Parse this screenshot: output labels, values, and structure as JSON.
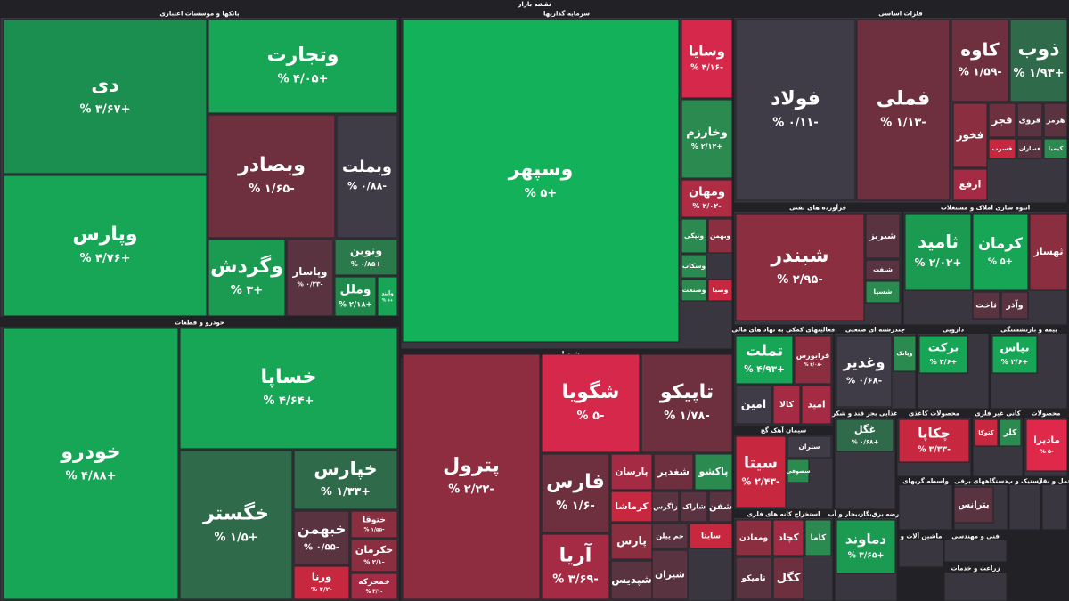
{
  "title": "نقشه بازار",
  "sectors": [
    {
      "name": "بانکها و موسسات اعتباری",
      "tiles": [
        {
          "name": "دی",
          "change": "+۳/۶۷ %",
          "color": "#1b8f4f"
        },
        {
          "name": "وپارس",
          "change": "+۴/۷۶ %",
          "color": "#17a556"
        },
        {
          "name": "وتجارت",
          "change": "+۴/۰۵ %",
          "color": "#17a556"
        },
        {
          "name": "وبصادر",
          "change": "-۱/۶۵ %",
          "color": "#6e2f3e"
        },
        {
          "name": "وبملت",
          "change": "-۰/۸۸ %",
          "color": "#3f3b47"
        },
        {
          "name": "وگردش",
          "change": "+۳ %",
          "color": "#1b9a52"
        },
        {
          "name": "وپاسار",
          "change": "-۰/۲۳ %",
          "color": "#5a3340"
        },
        {
          "name": "ونوین",
          "change": "+۰/۸۵ %",
          "color": "#2a7a4b"
        },
        {
          "name": "وملل",
          "change": "+۲/۱۸ %",
          "color": "#1f8a4c"
        },
        {
          "name": "وآیند",
          "change": "+۵ %",
          "color": "#17a556"
        }
      ]
    },
    {
      "name": "خودرو و قطعات",
      "tiles": [
        {
          "name": "خودرو",
          "change": "+۴/۸۸ %",
          "color": "#17a556"
        },
        {
          "name": "خساپا",
          "change": "+۴/۶۴ %",
          "color": "#17a556"
        },
        {
          "name": "خگستر",
          "change": "+۱/۵ %",
          "color": "#2f6a4a"
        },
        {
          "name": "خپارس",
          "change": "+۱/۳۳ %",
          "color": "#2f6a4a"
        },
        {
          "name": "خبهمن",
          "change": "-۰/۵۵ %",
          "color": "#5a3340"
        },
        {
          "name": "ختوقا",
          "change": "-۱/۵۵ %",
          "color": "#8a2e40"
        },
        {
          "name": "خکرمان",
          "change": "-۲/۱ %",
          "color": "#8a2e40"
        },
        {
          "name": "ورنا",
          "change": "-۴/۲ %",
          "color": "#c8283f"
        },
        {
          "name": "خمحرکه",
          "change": "-۳/۱ %",
          "color": "#a52b44"
        }
      ]
    },
    {
      "name": "سرمایه گذاریها",
      "tiles": [
        {
          "name": "وسپهر",
          "change": "+۵ %",
          "color": "#12b15a"
        },
        {
          "name": "وسایا",
          "change": "-۴/۱۶ %",
          "color": "#d6284a"
        },
        {
          "name": "وخارزم",
          "change": "+۲/۱۲ %",
          "color": "#2a8a50"
        },
        {
          "name": "ومهان",
          "change": "-۲/۰۲ %",
          "color": "#b02b44"
        },
        {
          "name": "ونیکی",
          "color": "#2a8a50"
        },
        {
          "name": "وبهمن",
          "color": "#8a2e40"
        },
        {
          "name": "وسکاب",
          "color": "#2a8a50"
        },
        {
          "name": "وصنعت",
          "color": "#2a8a50"
        },
        {
          "name": "وصبا",
          "color": "#c8283f"
        }
      ]
    },
    {
      "name": "فلزات اساسی",
      "tiles": [
        {
          "name": "فولاد",
          "change": "-۰/۱۱ %",
          "color": "#3f3b47"
        },
        {
          "name": "فملی",
          "change": "-۱/۱۳ %",
          "color": "#6e2f3e"
        },
        {
          "name": "کاوه",
          "change": "-۱/۵۹ %",
          "color": "#6e2f3e"
        },
        {
          "name": "ذوب",
          "change": "+۱/۹۳ %",
          "color": "#2f6a4a"
        },
        {
          "name": "فجر",
          "color": "#6e2f3e"
        },
        {
          "name": "فروی",
          "color": "#5a3340"
        },
        {
          "name": "هرمز",
          "color": "#5a3340"
        },
        {
          "name": "فخوز",
          "color": "#8a2e40"
        },
        {
          "name": "فسرب",
          "color": "#c8283f"
        },
        {
          "name": "فسازان",
          "color": "#5a3340"
        },
        {
          "name": "کیمیا",
          "color": "#2a8a50"
        },
        {
          "name": "ارفع",
          "color": "#a52b44"
        }
      ]
    },
    {
      "name": "فرآورده های نفتی",
      "tiles": [
        {
          "name": "شبندر",
          "change": "-۲/۹۵ %",
          "color": "#8a2e40"
        },
        {
          "name": "شبریز",
          "color": "#5a3340"
        },
        {
          "name": "شنفت",
          "color": "#5a3340"
        },
        {
          "name": "شسپا",
          "color": "#2a8a50"
        }
      ]
    },
    {
      "name": "انبوه سازی املاک و مستغلات",
      "tiles": [
        {
          "name": "ثامید",
          "change": "+۲/۰۲ %",
          "color": "#1b9a52"
        },
        {
          "name": "کرمان",
          "change": "+۵ %",
          "color": "#17a556"
        },
        {
          "name": "ثهساز",
          "color": "#8a2e40"
        },
        {
          "name": "ثاخت",
          "color": "#5a3340"
        },
        {
          "name": "وآذر",
          "color": "#5a3340"
        }
      ]
    },
    {
      "name": "شیمیایی",
      "tiles": [
        {
          "name": "پترول",
          "change": "-۲/۲۲ %",
          "color": "#8e2c40"
        },
        {
          "name": "شگویا",
          "change": "-۵ %",
          "color": "#d6284a"
        },
        {
          "name": "تاپیکو",
          "change": "-۱/۷۸ %",
          "color": "#6e2f3e"
        },
        {
          "name": "فارس",
          "change": "-۱/۶ %",
          "color": "#6e2f3e"
        },
        {
          "name": "آریا",
          "change": "-۳/۶۹ %",
          "color": "#a52b44"
        },
        {
          "name": "پارسان",
          "color": "#a52b44"
        },
        {
          "name": "شغدیر",
          "color": "#6e2f3e"
        },
        {
          "name": "پاکشو",
          "color": "#2a8a50"
        },
        {
          "name": "کرماشا",
          "color": "#c8283f"
        },
        {
          "name": "زاگرس",
          "color": "#5a3340"
        },
        {
          "name": "شاراک",
          "color": "#5a3340"
        },
        {
          "name": "شفن",
          "color": "#5a3340"
        },
        {
          "name": "پارس",
          "color": "#8a2e40"
        },
        {
          "name": "جم پیلن",
          "color": "#5a3340"
        },
        {
          "name": "سایتا",
          "color": "#c8283f"
        },
        {
          "name": "شپدیس",
          "color": "#5a3340"
        },
        {
          "name": "شیران",
          "color": "#5a3340"
        }
      ]
    },
    {
      "name": "فعالیتهای کمکی به نهاد های مالی",
      "tiles": [
        {
          "name": "تملت",
          "change": "+۴/۹۳ %",
          "color": "#17a556"
        },
        {
          "name": "فرابورس",
          "change": "-۳/۰۸ %",
          "color": "#8a2e40"
        },
        {
          "name": "امین",
          "color": "#3f3b47"
        },
        {
          "name": "کالا",
          "color": "#a52b44"
        },
        {
          "name": "امید",
          "color": "#a52b44"
        }
      ]
    },
    {
      "name": "چندرشته ای صنعتی",
      "tiles": [
        {
          "name": "وغدیر",
          "change": "-۰/۶۸ %",
          "color": "#3f3b47"
        },
        {
          "name": "وپانک",
          "color": "#2a8a50"
        }
      ]
    },
    {
      "name": "دارویی",
      "tiles": [
        {
          "name": "برکت",
          "change": "+۳/۶ %",
          "color": "#17a556"
        }
      ]
    },
    {
      "name": "بیمه و بازنشستگی",
      "tiles": [
        {
          "name": "بپاس",
          "change": "+۲/۶ %",
          "color": "#17a556"
        }
      ]
    },
    {
      "name": "سیمان آهک گچ",
      "tiles": [
        {
          "name": "سیتا",
          "change": "-۲/۴۳ %",
          "color": "#c8283f"
        },
        {
          "name": "ستران",
          "color": "#3f3b47"
        },
        {
          "name": "سصوفی",
          "color": "#2a8a50"
        }
      ]
    },
    {
      "name": "غذایی بجز قند و شکر",
      "tiles": [
        {
          "name": "غگل",
          "change": "+۰/۶۸ %",
          "color": "#2f6a4a"
        }
      ]
    },
    {
      "name": "محصولات کاغذی",
      "tiles": [
        {
          "name": "چکاپا",
          "change": "-۳/۳۳ %",
          "color": "#c8283f"
        }
      ]
    },
    {
      "name": "کانی غیر فلزی",
      "tiles": [
        {
          "name": "کتوکا",
          "color": "#c8283f"
        },
        {
          "name": "کلر",
          "color": "#2a8a50"
        }
      ]
    },
    {
      "name": "محصولات",
      "tiles": [
        {
          "name": "مادیرا",
          "change": "-۵ %",
          "color": "#e0294a"
        }
      ]
    },
    {
      "name": "استخراج کانه های فلزی",
      "tiles": [
        {
          "name": "ومعادن",
          "color": "#8a2e40"
        },
        {
          "name": "کچاد",
          "color": "#a52b44"
        },
        {
          "name": "کاما",
          "color": "#2a8a50"
        },
        {
          "name": "تامیکو",
          "color": "#5a3340"
        },
        {
          "name": "کگل",
          "color": "#6e2f3e"
        }
      ]
    },
    {
      "name": "عرضه برق،گاز،بخار و آب",
      "tiles": [
        {
          "name": "دماوند",
          "change": "+۳/۶۵ %",
          "color": "#1b9a52"
        }
      ]
    },
    {
      "name": "واسطه گریهای",
      "tiles": []
    },
    {
      "name": "دستگاههای برقی",
      "tiles": [
        {
          "name": "بترانس",
          "color": "#5a3340"
        }
      ]
    },
    {
      "name": "لاستیک و پ",
      "tiles": []
    },
    {
      "name": "حمل و نقل",
      "tiles": []
    },
    {
      "name": "فنی و مهندسی",
      "tiles": []
    },
    {
      "name": "ماشین آلات و",
      "tiles": []
    },
    {
      "name": "زراعت و خدمات",
      "tiles": []
    }
  ]
}
